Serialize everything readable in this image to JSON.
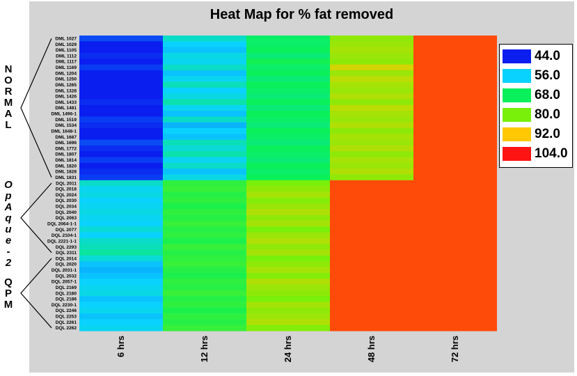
{
  "chart_data": {
    "type": "heatmap",
    "title": "Heat Map for % fat removed",
    "columns": [
      "6 hrs",
      "12 hrs",
      "24 hrs",
      "48 hrs",
      "72 hrs"
    ],
    "rows": [
      "DML 1027",
      "DML 1029",
      "DML 1105",
      "DML 1112",
      "DML 1117",
      "DML 1169",
      "DML 1204",
      "DML 1250",
      "DML 1265",
      "DML 1328",
      "DML 1426",
      "DML 1433",
      "DML 1481",
      "DML 1496-1",
      "DML 1519",
      "DML 1534",
      "DML 1648-1",
      "DML 1687",
      "DML 1696",
      "DML 1772",
      "DML 1807",
      "DML 1814",
      "DML 1820",
      "DML 1828",
      "DML 1831",
      "DQL 2011",
      "DQL 2018",
      "DQL 2024",
      "DQL 2030",
      "DQL 2034",
      "DQL 2040",
      "DQL 2063",
      "DQL 2064-1-1",
      "DQL 2077",
      "DQL 2104-1",
      "DQL 2221-1-1",
      "DQL 2293",
      "DQL 2311",
      "DQL 2014",
      "DQL 2020",
      "DQL 2031-1",
      "DQL 2032",
      "DQL 2057-1",
      "DQL 2169",
      "DQL 2180",
      "DQL 2186",
      "DQL 2230-1",
      "DQL 2246",
      "DQL 2253",
      "DQL 2261",
      "DQL 2262"
    ],
    "values": [
      [
        47,
        60,
        67,
        82,
        100
      ],
      [
        44,
        56,
        67,
        83,
        100
      ],
      [
        42,
        55,
        68,
        84,
        100
      ],
      [
        45,
        58,
        66,
        83,
        100
      ],
      [
        43,
        57,
        69,
        82,
        100
      ],
      [
        46,
        60,
        67,
        88,
        100
      ],
      [
        44,
        55,
        68,
        83,
        100
      ],
      [
        42,
        57,
        66,
        86,
        100
      ],
      [
        43,
        61,
        68,
        84,
        100
      ],
      [
        42,
        56,
        67,
        83,
        100
      ],
      [
        43,
        58,
        66,
        85,
        100
      ],
      [
        45,
        62,
        68,
        82,
        100
      ],
      [
        43,
        57,
        66,
        86,
        100
      ],
      [
        44,
        55,
        68,
        84,
        100
      ],
      [
        46,
        60,
        67,
        83,
        100
      ],
      [
        45,
        54,
        66,
        85,
        100
      ],
      [
        44,
        56,
        68,
        82,
        100
      ],
      [
        42,
        55,
        67,
        84,
        100
      ],
      [
        47,
        61,
        66,
        83,
        100
      ],
      [
        45,
        59,
        68,
        85,
        100
      ],
      [
        44,
        62,
        67,
        82,
        100
      ],
      [
        46,
        57,
        66,
        84,
        100
      ],
      [
        43,
        60,
        68,
        83,
        100
      ],
      [
        45,
        55,
        67,
        85,
        100
      ],
      [
        46,
        58,
        68,
        82,
        100
      ],
      [
        60,
        72,
        80,
        100,
        100
      ],
      [
        57,
        73,
        82,
        100,
        100
      ],
      [
        58,
        71,
        84,
        100,
        100
      ],
      [
        56,
        72,
        81,
        100,
        100
      ],
      [
        57,
        70,
        83,
        100,
        100
      ],
      [
        58,
        72,
        85,
        100,
        100
      ],
      [
        57,
        71,
        82,
        100,
        100
      ],
      [
        56,
        73,
        84,
        100,
        100
      ],
      [
        59,
        71,
        80,
        100,
        100
      ],
      [
        56,
        72,
        83,
        100,
        100
      ],
      [
        60,
        70,
        85,
        100,
        100
      ],
      [
        61,
        73,
        82,
        100,
        100
      ],
      [
        63,
        71,
        84,
        100,
        100
      ],
      [
        59,
        72,
        80,
        100,
        100
      ],
      [
        55,
        73,
        82,
        100,
        100
      ],
      [
        54,
        71,
        84,
        100,
        100
      ],
      [
        55,
        70,
        81,
        100,
        100
      ],
      [
        56,
        72,
        85,
        100,
        100
      ],
      [
        57,
        71,
        83,
        100,
        100
      ],
      [
        58,
        73,
        82,
        100,
        100
      ],
      [
        55,
        71,
        80,
        100,
        100
      ],
      [
        56,
        72,
        84,
        100,
        100
      ],
      [
        57,
        70,
        82,
        100,
        100
      ],
      [
        55,
        72,
        83,
        100,
        100
      ],
      [
        56,
        71,
        85,
        100,
        100
      ],
      [
        57,
        73,
        81,
        100,
        100
      ]
    ],
    "groups": [
      {
        "label": "NORMAL",
        "start": 0,
        "end": 24,
        "italic": false
      },
      {
        "label": "OpAque-2",
        "start": 25,
        "end": 37,
        "italic": true
      },
      {
        "label": "QPM",
        "start": 38,
        "end": 50,
        "italic": false
      }
    ],
    "color_scale": [
      {
        "value": "44.0",
        "color": "#0a1ef0"
      },
      {
        "value": "56.0",
        "color": "#0ad2ff"
      },
      {
        "value": "68.0",
        "color": "#0af05a"
      },
      {
        "value": "80.0",
        "color": "#78f00a"
      },
      {
        "value": "92.0",
        "color": "#ffc800"
      },
      {
        "value": "104.0",
        "color": "#ff1414"
      }
    ],
    "high_cell_color": "#ff4b0a",
    "legend_position": "top-right",
    "grid": false
  }
}
